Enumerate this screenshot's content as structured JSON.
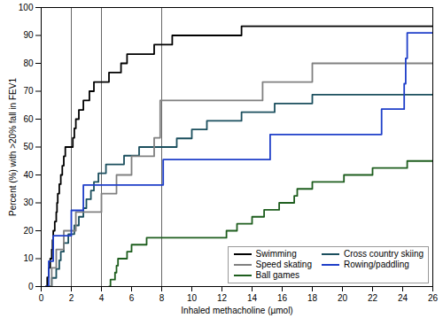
{
  "chart_data": {
    "type": "line",
    "line_style": "step",
    "x_label": "Inhaled methacholine (µmol)",
    "y_label": "Percent (%) with >20% fall in FEV1",
    "xlim": [
      0,
      26
    ],
    "xticks": [
      0,
      2,
      4,
      6,
      8,
      10,
      12,
      14,
      16,
      18,
      20,
      22,
      24,
      26
    ],
    "ylim": [
      0,
      100
    ],
    "yticks": [
      0,
      10,
      20,
      30,
      40,
      50,
      60,
      70,
      80,
      90,
      100
    ],
    "reference_lines": [
      2,
      4,
      8
    ],
    "legend": "lower right",
    "series": [
      {
        "name": "Swimming",
        "color": "#000000",
        "x": [
          0.3,
          0.4,
          0.5,
          0.6,
          0.7,
          0.75,
          0.8,
          0.9,
          1.0,
          1.05,
          1.1,
          1.2,
          1.3,
          1.4,
          1.5,
          1.6,
          2.1,
          2.2,
          2.3,
          2.5,
          2.8,
          3.2,
          3.5,
          4.5,
          5.3,
          5.7,
          7.5,
          8.7,
          13.3,
          26
        ],
        "values": [
          0,
          3.3,
          6.7,
          10,
          13.3,
          16.7,
          20,
          23.3,
          26.7,
          30,
          33.3,
          36.7,
          40,
          43.3,
          46.7,
          50,
          53.3,
          56.7,
          60,
          63.3,
          66.7,
          70,
          73.3,
          76.7,
          80,
          83.3,
          86.7,
          90,
          93.3,
          93.3
        ]
      },
      {
        "name": "Cross country skiing",
        "color": "#1b4f5e",
        "x": [
          0.5,
          0.7,
          1.0,
          1.2,
          1.3,
          1.5,
          1.8,
          2.2,
          2.5,
          2.8,
          3.0,
          3.3,
          3.5,
          3.8,
          4.3,
          5.5,
          6.5,
          9.0,
          10.0,
          11.0,
          13.3,
          15.5,
          18.0,
          26
        ],
        "values": [
          0,
          3.1,
          6.3,
          9.4,
          12.5,
          15.6,
          18.8,
          21.9,
          25,
          28.1,
          31.3,
          34.4,
          37.5,
          40.6,
          43.8,
          46.9,
          50,
          53.1,
          56.3,
          59.4,
          62.5,
          65.6,
          68.8,
          68.8
        ]
      },
      {
        "name": "Speed skating",
        "color": "#808080",
        "x": [
          0.5,
          0.7,
          1.0,
          1.5,
          2.3,
          4.0,
          5.0,
          6.0,
          7.5,
          7.9,
          14.7,
          18.0,
          26
        ],
        "values": [
          0,
          6.7,
          13.3,
          20,
          26.7,
          33.3,
          40,
          46.7,
          53.3,
          66.7,
          73.3,
          80,
          80
        ]
      },
      {
        "name": "Rowing/paddling",
        "color": "#1f3fc9",
        "x": [
          0.3,
          0.5,
          0.8,
          2.0,
          2.8,
          8.1,
          15.2,
          22.6,
          24.1,
          24.2,
          24.3,
          26
        ],
        "values": [
          0,
          9.1,
          18.2,
          27.3,
          36.4,
          45.5,
          54.5,
          63.6,
          72.7,
          81.8,
          90.9,
          90.9
        ]
      },
      {
        "name": "Ball games",
        "color": "#1e5e1e",
        "x": [
          4.5,
          4.6,
          4.9,
          5.0,
          5.1,
          5.7,
          6.0,
          7.0,
          12.3,
          13.0,
          14.0,
          14.8,
          15.8,
          16.8,
          17.0,
          18.0,
          20.1,
          22.0,
          24.3,
          26
        ],
        "values": [
          0,
          2.5,
          5,
          7.5,
          10,
          12.5,
          15,
          17.5,
          20,
          22.5,
          25,
          27.5,
          30,
          32.5,
          35,
          37.5,
          40,
          42.5,
          45,
          45
        ]
      }
    ]
  }
}
